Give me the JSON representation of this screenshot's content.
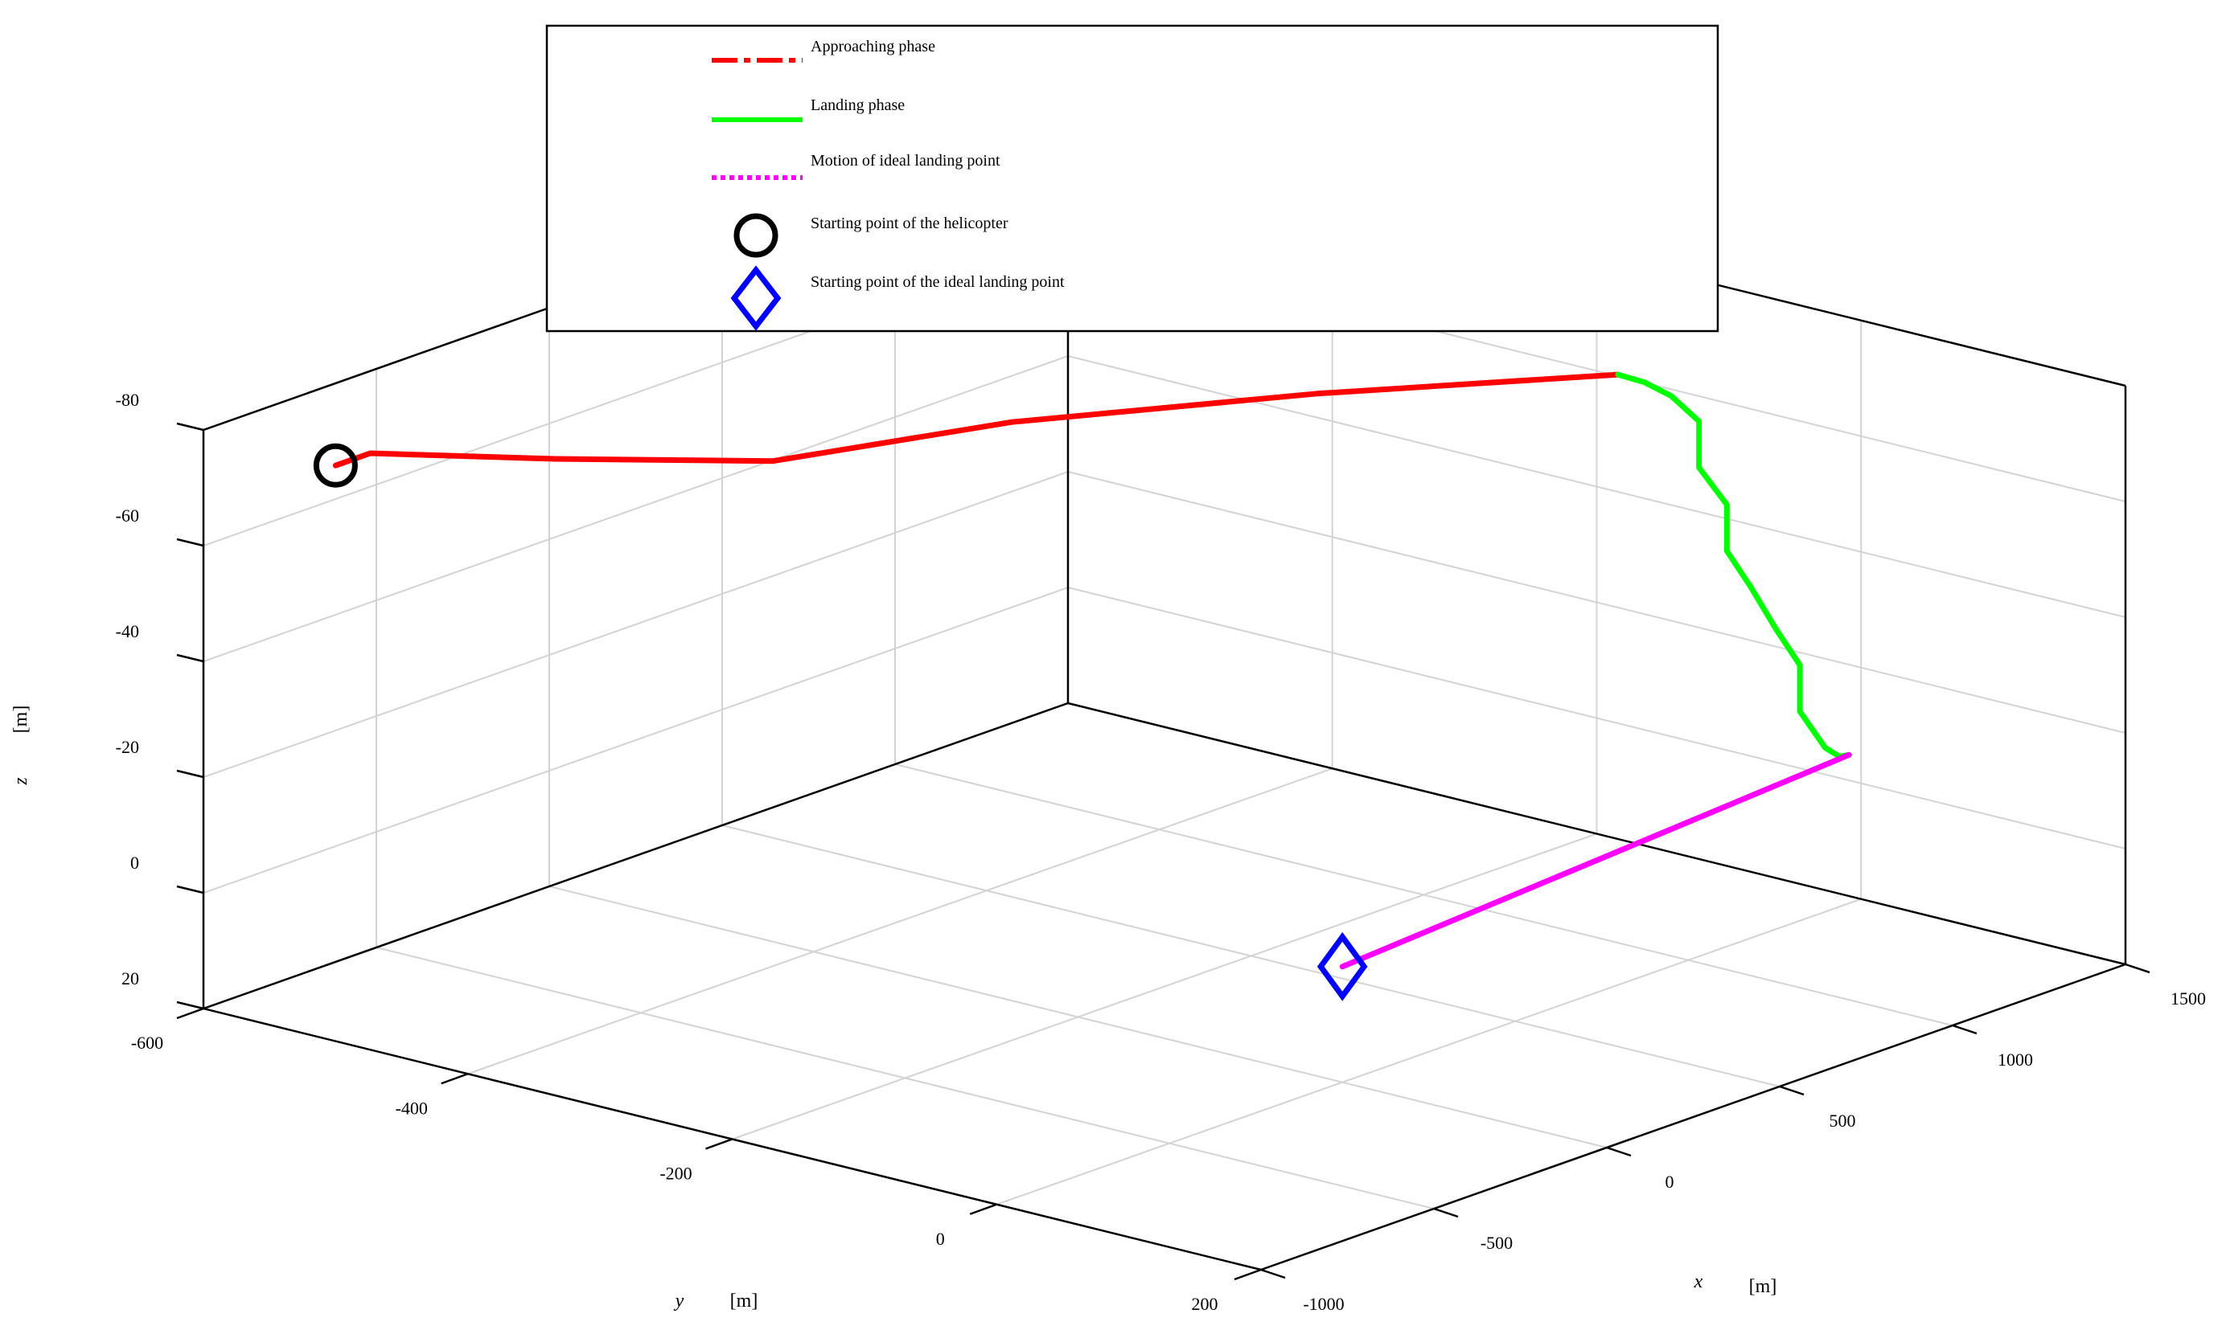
{
  "chart_data": {
    "type": "line",
    "dimensions": "3d",
    "title": "",
    "xlabel": {
      "var": "x",
      "unit": "[m]"
    },
    "ylabel": {
      "var": "y",
      "unit": "[m]"
    },
    "zlabel": {
      "var": "z",
      "unit": "[m]"
    },
    "xlim": [
      -1000,
      1500
    ],
    "ylim": [
      -600,
      200
    ],
    "zlim": [
      20,
      -80
    ],
    "z_axis_reversed": true,
    "grid": true,
    "box": true,
    "legend_placement": "top-center",
    "xticks": [
      -1000,
      -500,
      0,
      500,
      1000,
      1500
    ],
    "xtick_labels": [
      "-1000",
      "-500",
      "0",
      "500",
      "1000",
      "1500"
    ],
    "yticks": [
      -600,
      -400,
      -200,
      0,
      200
    ],
    "ytick_labels": [
      "-600",
      "-400",
      "-200",
      "0",
      "200"
    ],
    "zticks": [
      -80,
      -60,
      -40,
      -20,
      0,
      20
    ],
    "ztick_labels": [
      "-80",
      "-60",
      "-40",
      "-20",
      "0",
      "20"
    ],
    "series": [
      {
        "name": "Approaching phase",
        "color": "#ff0000",
        "style": "dash-dot",
        "points": [
          [
            -1000,
            -500,
            -79.5
          ],
          [
            -900,
            -500,
            -79.5
          ],
          [
            -750,
            -400,
            -81
          ],
          [
            -500,
            -300,
            -81
          ],
          [
            0,
            -250,
            -80
          ],
          [
            500,
            -150,
            -80
          ],
          [
            950,
            -40,
            -80
          ]
        ]
      },
      {
        "name": "Landing phase",
        "color": "#00ff00",
        "style": "solid",
        "points": [
          [
            950,
            -40,
            -80
          ],
          [
            1000,
            -33,
            -78
          ],
          [
            1050,
            -26,
            -75
          ],
          [
            1100,
            -18,
            -70
          ],
          [
            1100,
            -18,
            -62
          ],
          [
            1150,
            -10,
            -55
          ],
          [
            1150,
            -10,
            -47
          ],
          [
            1200,
            -5,
            -40
          ],
          [
            1250,
            1,
            -32
          ],
          [
            1300,
            6,
            -25
          ],
          [
            1300,
            6,
            -17
          ],
          [
            1350,
            12,
            -10
          ],
          [
            1380,
            15,
            -8
          ],
          [
            1400,
            17,
            -8
          ]
        ]
      },
      {
        "name": "Motion of ideal landing point",
        "color": "#ff00ff",
        "style": "dotted",
        "points": [
          [
            0,
            0,
            0
          ],
          [
            1400,
            17,
            -8
          ]
        ]
      },
      {
        "name": "Starting point of the helicopter",
        "color": "#000000",
        "marker": "circle",
        "points": [
          [
            -1000,
            -500,
            -79.5
          ]
        ]
      },
      {
        "name": "Starting point of the ideal landing point",
        "color": "#0000ff",
        "marker": "diamond",
        "points": [
          [
            0,
            0,
            0
          ]
        ]
      }
    ]
  }
}
